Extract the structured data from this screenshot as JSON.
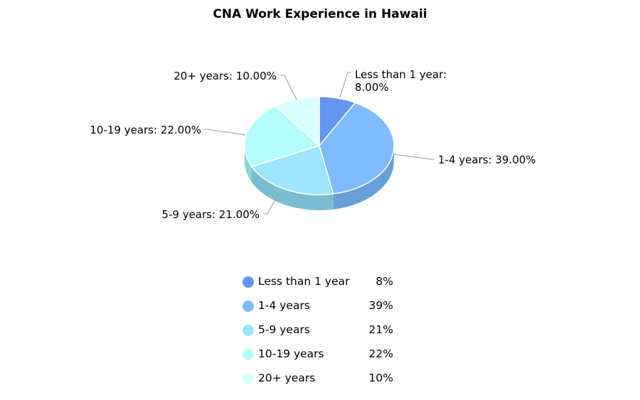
{
  "chart_data": {
    "type": "pie",
    "title": "CNA Work Experience in Hawaii",
    "categories": [
      "Less than 1 year",
      "1-4 years",
      "5-9 years",
      "10-19 years",
      "20+ years"
    ],
    "values": [
      8,
      39,
      21,
      22,
      10
    ],
    "slice_labels": [
      [
        "Less than 1 year:",
        "8.00%"
      ],
      [
        "1-4 years: 39.00%"
      ],
      [
        "5-9 years: 21.00%"
      ],
      [
        "10-19 years: 22.00%"
      ],
      [
        "20+ years: 10.00%"
      ]
    ],
    "legend_values": [
      "8%",
      "39%",
      "21%",
      "22%",
      "10%"
    ],
    "colors": [
      "#6495ed",
      "#7fbbff",
      "#9ee5fc",
      "#b3fdfd",
      "#d9fffd"
    ],
    "side_colors": [
      "#4d76c4",
      "#6a9fd8",
      "#7bbdd0",
      "#8ed3d3",
      "#b5e4e4"
    ],
    "legend_position": "bottom",
    "style": "3d"
  }
}
